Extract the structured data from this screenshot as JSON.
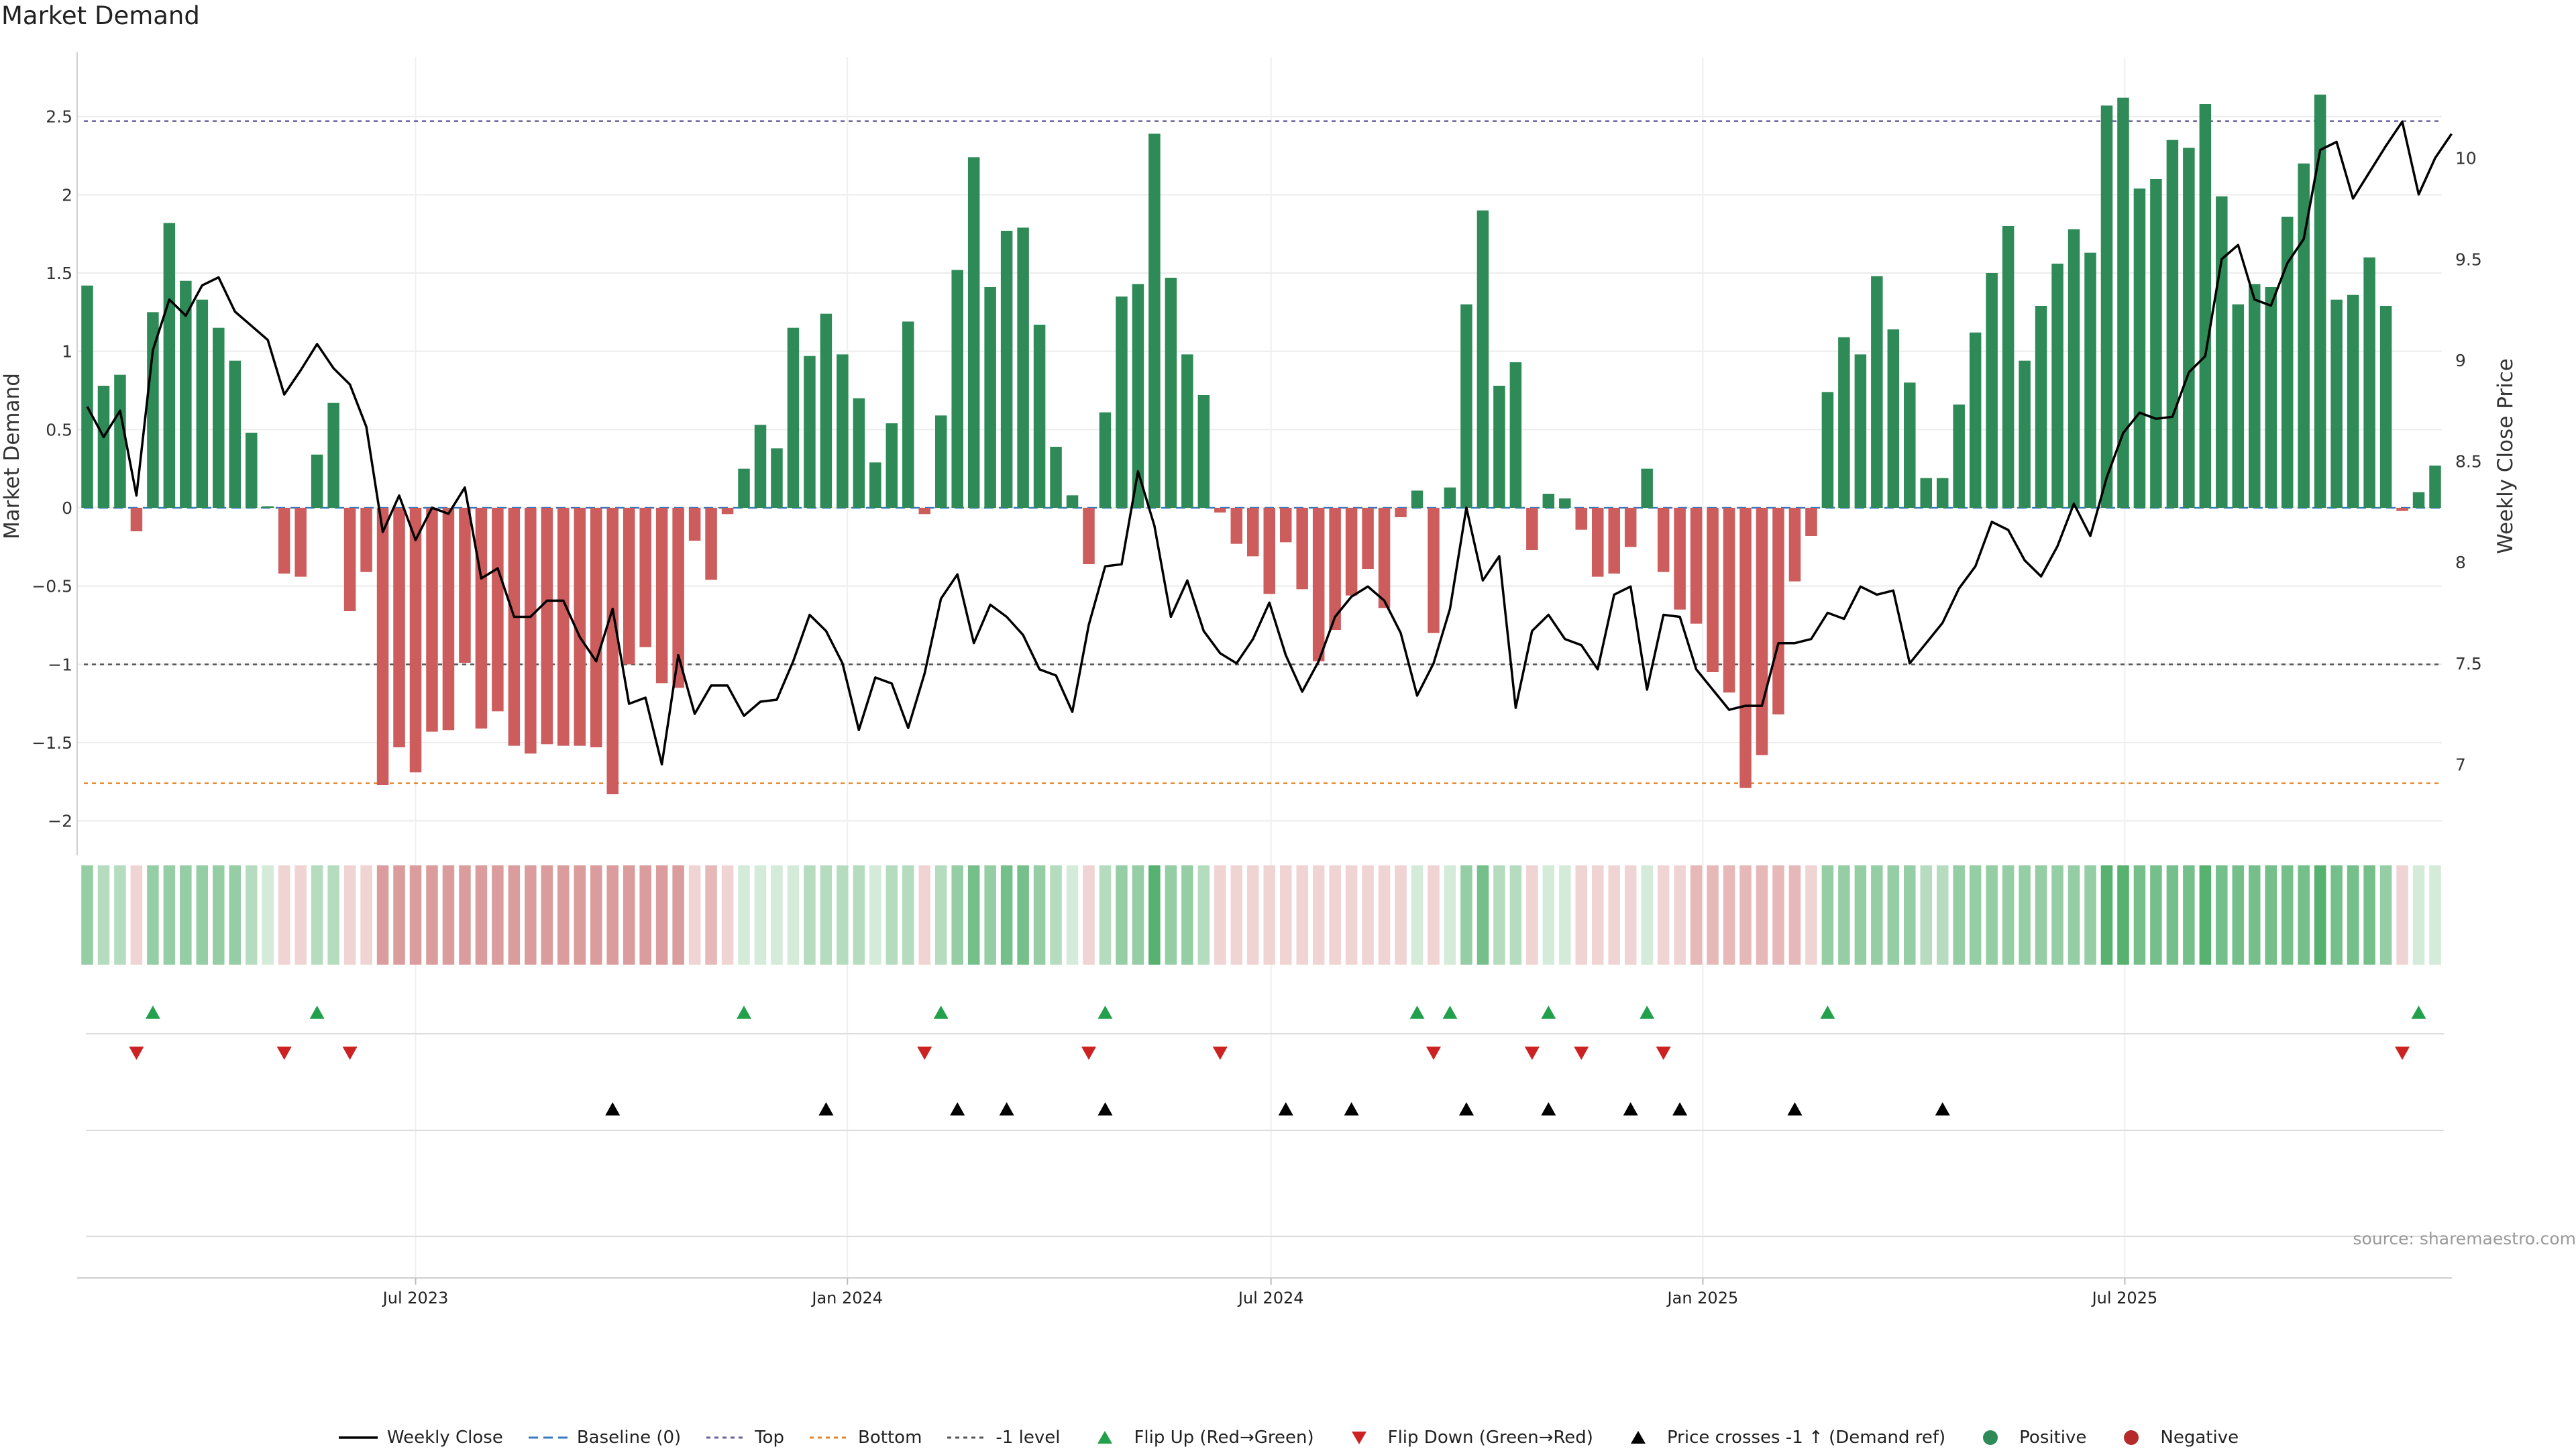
{
  "title": "Market Demand",
  "source": "source: sharemaestro.com",
  "colors": {
    "positive": "#2e8b57",
    "negative": "#cd5c5c",
    "price": "#000000",
    "top": "#6a5f9c",
    "bottom": "#e6862a",
    "level": "#555555",
    "baseline": "#3a78c0",
    "flip_up": "#22a04b",
    "flip_down": "#cc2222",
    "cross": "#000000",
    "strip_pos": [
      "#d3ebd8",
      "#b5dcbf",
      "#95cda4",
      "#74bf8a",
      "#57b270",
      "#3fa65d"
    ],
    "strip_neg": [
      "#f0d3d3",
      "#e6b8b8",
      "#da9c9c",
      "#d28a8a"
    ]
  },
  "legend": [
    {
      "key": "line-price",
      "label": "Weekly Close"
    },
    {
      "key": "line-baseline",
      "label": "Baseline (0)"
    },
    {
      "key": "line-top",
      "label": "Top"
    },
    {
      "key": "line-bottom",
      "label": "Bottom"
    },
    {
      "key": "line-level",
      "label": "-1 level"
    },
    {
      "key": "marker-up",
      "label": "Flip Up (Red→Green)"
    },
    {
      "key": "marker-down",
      "label": "Flip Down (Green→Red)"
    },
    {
      "key": "marker-cross",
      "label": "Price crosses -1 ↑ (Demand ref)"
    },
    {
      "key": "dot-pos",
      "label": "Positive"
    },
    {
      "key": "dot-neg",
      "label": "Negative"
    }
  ],
  "chart_data": {
    "type": "bar",
    "title": "Market Demand",
    "ylabel": "Market Demand",
    "y2label": "Weekly Close Price",
    "ylim": [
      -2.22,
      2.88
    ],
    "y2lim": [
      6.55,
      10.5
    ],
    "yticks": [
      -2,
      -1.5,
      -1,
      -0.5,
      0,
      0.5,
      1,
      1.5,
      2,
      2.5
    ],
    "ytick_labels": [
      "−2",
      "−1.5",
      "−1",
      "−0.5",
      "0",
      "0.5",
      "1",
      "1.5",
      "2",
      "2.5"
    ],
    "y2ticks": [
      7,
      7.5,
      8,
      8.5,
      9,
      9.5,
      10
    ],
    "y2tick_labels": [
      "7",
      "7.5",
      "8",
      "8.5",
      "9",
      "9.5",
      "10"
    ],
    "xticks": [
      {
        "index": 20,
        "label": "Jul 2023"
      },
      {
        "index": 46.3,
        "label": "Jan 2024"
      },
      {
        "index": 72.1,
        "label": "Jul 2024"
      },
      {
        "index": 98.4,
        "label": "Jan 2025"
      },
      {
        "index": 124.1,
        "label": "Jul 2025"
      }
    ],
    "reference_lines": {
      "baseline": 0,
      "top": 2.47,
      "bottom": -1.76,
      "level": -1
    },
    "series": [
      {
        "name": "Market Demand",
        "values": [
          1.42,
          0.78,
          0.85,
          -0.15,
          1.25,
          1.82,
          1.45,
          1.33,
          1.15,
          0.94,
          0.48,
          0.01,
          -0.42,
          -0.44,
          0.34,
          0.67,
          -0.66,
          -0.41,
          -1.77,
          -1.53,
          -1.69,
          -1.43,
          -1.42,
          -0.99,
          -1.41,
          -1.3,
          -1.52,
          -1.57,
          -1.51,
          -1.52,
          -1.52,
          -1.53,
          -1.83,
          -1.0,
          -0.89,
          -1.12,
          -1.15,
          -0.21,
          -0.46,
          -0.04,
          0.25,
          0.53,
          0.38,
          1.15,
          0.97,
          1.24,
          0.98,
          0.7,
          0.29,
          0.54,
          1.19,
          -0.04,
          0.59,
          1.52,
          2.24,
          1.41,
          1.77,
          1.79,
          1.17,
          0.39,
          0.08,
          -0.36,
          0.61,
          1.35,
          1.43,
          2.39,
          1.47,
          0.98,
          0.72,
          -0.03,
          -0.23,
          -0.31,
          -0.55,
          -0.22,
          -0.52,
          -0.98,
          -0.78,
          -0.56,
          -0.39,
          -0.64,
          -0.06,
          0.11,
          -0.8,
          0.13,
          1.3,
          1.9,
          0.78,
          0.93,
          -0.27,
          0.09,
          0.06,
          -0.14,
          -0.44,
          -0.42,
          -0.25,
          0.25,
          -0.41,
          -0.65,
          -0.74,
          -1.05,
          -1.18,
          -1.79,
          -1.58,
          -1.32,
          -0.47,
          -0.18,
          0.74,
          1.09,
          0.98,
          1.48,
          1.14,
          0.8,
          0.19,
          0.19,
          0.66,
          1.12,
          1.5,
          1.8,
          0.94,
          1.29,
          1.56,
          1.78,
          1.63,
          2.57,
          2.62,
          2.04,
          2.1,
          2.35,
          2.3,
          2.58,
          1.99,
          1.3,
          1.43,
          1.41,
          1.86,
          2.2,
          2.64,
          1.33,
          1.36,
          1.6,
          1.29,
          -0.02,
          0.1,
          0.27
        ]
      },
      {
        "name": "Weekly Close",
        "values": [
          8.77,
          8.62,
          8.75,
          8.33,
          9.05,
          9.3,
          9.22,
          9.37,
          9.41,
          9.24,
          9.17,
          9.1,
          8.83,
          8.95,
          9.08,
          8.96,
          8.88,
          8.67,
          8.15,
          8.33,
          8.11,
          8.27,
          8.24,
          8.37,
          7.92,
          7.97,
          7.73,
          7.73,
          7.81,
          7.81,
          7.63,
          7.51,
          7.77,
          7.3,
          7.33,
          7.0,
          7.54,
          7.25,
          7.39,
          7.39,
          7.24,
          7.31,
          7.32,
          7.51,
          7.74,
          7.66,
          7.5,
          7.17,
          7.43,
          7.4,
          7.18,
          7.45,
          7.82,
          7.94,
          7.6,
          7.79,
          7.73,
          7.64,
          7.47,
          7.44,
          7.26,
          7.69,
          7.98,
          7.99,
          8.45,
          8.18,
          7.73,
          7.91,
          7.66,
          7.55,
          7.5,
          7.62,
          7.8,
          7.54,
          7.36,
          7.51,
          7.73,
          7.83,
          7.88,
          7.81,
          7.65,
          7.34,
          7.5,
          7.77,
          8.27,
          7.91,
          8.03,
          7.28,
          7.66,
          7.74,
          7.62,
          7.59,
          7.47,
          7.84,
          7.88,
          7.37,
          7.74,
          7.73,
          7.47,
          7.37,
          7.27,
          7.29,
          7.29,
          7.6,
          7.6,
          7.62,
          7.75,
          7.72,
          7.88,
          7.84,
          7.86,
          7.5,
          7.6,
          7.7,
          7.87,
          7.98,
          8.2,
          8.16,
          8.01,
          7.93,
          8.08,
          8.29,
          8.13,
          8.42,
          8.64,
          8.74,
          8.71,
          8.72,
          8.94,
          9.02,
          9.5,
          9.57,
          9.3,
          9.27,
          9.48,
          9.6,
          10.04,
          10.08,
          9.8,
          9.93,
          10.06,
          10.18,
          9.82,
          10.0,
          10.12
        ]
      }
    ],
    "strip_levels": [
      3,
      2,
      2,
      1,
      3,
      3,
      3,
      3,
      3,
      3,
      2,
      1,
      1,
      1,
      2,
      2,
      1,
      1,
      3,
      3,
      3,
      3,
      3,
      3,
      3,
      3,
      3,
      3,
      3,
      3,
      3,
      3,
      3,
      3,
      3,
      3,
      3,
      1,
      2,
      1,
      1,
      1,
      1,
      1,
      2,
      2,
      2,
      2,
      1,
      2,
      2,
      1,
      2,
      3,
      4,
      3,
      4,
      4,
      3,
      2,
      1,
      1,
      2,
      3,
      3,
      5,
      3,
      3,
      2,
      1,
      1,
      1,
      1,
      1,
      1,
      1,
      1,
      1,
      1,
      1,
      1,
      1,
      1,
      1,
      3,
      4,
      2,
      2,
      1,
      1,
      1,
      1,
      1,
      1,
      1,
      1,
      1,
      1,
      2,
      2,
      2,
      2,
      2,
      2,
      2,
      1,
      3,
      3,
      3,
      3,
      3,
      3,
      2,
      2,
      3,
      3,
      3,
      3,
      3,
      3,
      3,
      3,
      3,
      5,
      5,
      4,
      4,
      4,
      4,
      5,
      4,
      4,
      4,
      4,
      4,
      4,
      5,
      4,
      4,
      4,
      3,
      1,
      1,
      1
    ],
    "flip_up_indices": [
      4,
      14,
      40,
      52,
      62,
      81,
      83,
      89,
      95,
      106,
      142
    ],
    "flip_down_indices": [
      3,
      12,
      16,
      51,
      61,
      69,
      82,
      88,
      91,
      96,
      141
    ],
    "cross_indices": [
      32,
      45,
      53,
      56,
      62,
      73,
      77,
      84,
      89,
      94,
      97,
      104,
      113
    ]
  }
}
